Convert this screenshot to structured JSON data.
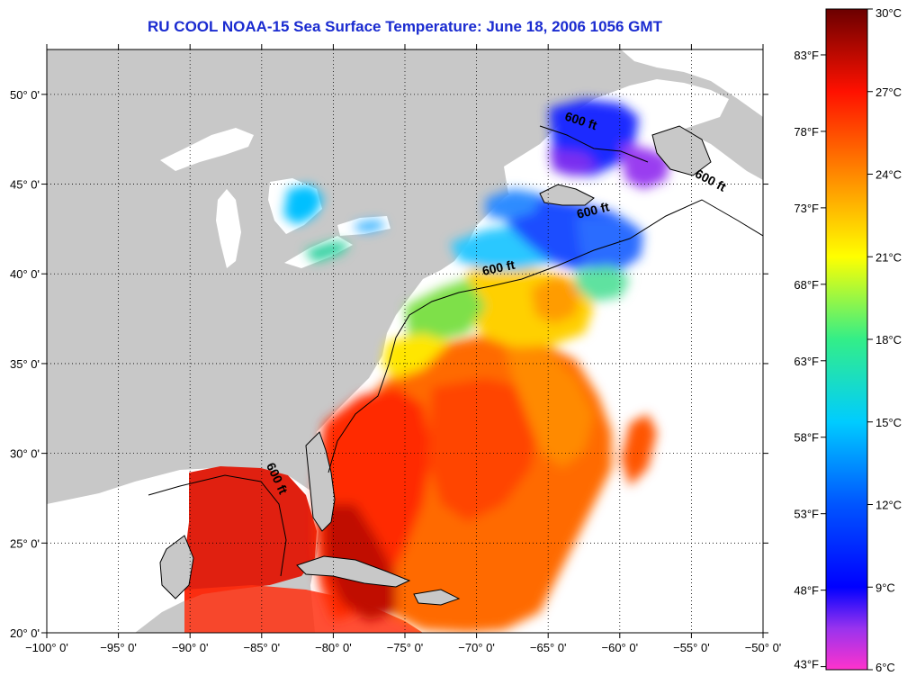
{
  "title": "RU COOL  NOAA-15  Sea Surface Temperature:  June 18, 2006 1056 GMT",
  "map": {
    "lon_range": [
      -100,
      -50
    ],
    "lat_range": [
      20,
      52.5
    ],
    "lon_ticks": [
      {
        "value": -100,
        "label": "−100° 0'"
      },
      {
        "value": -95,
        "label": "−95° 0'"
      },
      {
        "value": -90,
        "label": "−90° 0'"
      },
      {
        "value": -85,
        "label": "−85° 0'"
      },
      {
        "value": -80,
        "label": "−80° 0'"
      },
      {
        "value": -75,
        "label": "−75° 0'"
      },
      {
        "value": -70,
        "label": "−70° 0'"
      },
      {
        "value": -65,
        "label": "−65° 0'"
      },
      {
        "value": -60,
        "label": "−60° 0'"
      },
      {
        "value": -55,
        "label": "−55° 0'"
      },
      {
        "value": -50,
        "label": "−50° 0'"
      }
    ],
    "lat_ticks": [
      {
        "value": 20,
        "label": "20° 0'"
      },
      {
        "value": 25,
        "label": "25° 0'"
      },
      {
        "value": 30,
        "label": "30° 0'"
      },
      {
        "value": 35,
        "label": "35° 0'"
      },
      {
        "value": 40,
        "label": "40° 0'"
      },
      {
        "value": 45,
        "label": "45° 0'"
      },
      {
        "value": 50,
        "label": "50° 0'"
      }
    ],
    "grid": "dotted",
    "land_color": "#c8c8c8",
    "contour_label": "600 ft",
    "contour_labels": [
      {
        "lon": -84.2,
        "lat": 28.5,
        "angle": 65
      },
      {
        "lon": -68.4,
        "lat": 40.1,
        "angle": -12
      },
      {
        "lon": -61.8,
        "lat": 43.3,
        "angle": -14
      },
      {
        "lon": -62.8,
        "lat": 48.3,
        "angle": 18
      },
      {
        "lon": -53.8,
        "lat": 45.0,
        "angle": 28
      }
    ]
  },
  "colorbar": {
    "celsius": [
      {
        "value": 30,
        "label": "30°C"
      },
      {
        "value": 27,
        "label": "27°C"
      },
      {
        "value": 24,
        "label": "24°C"
      },
      {
        "value": 21,
        "label": "21°C"
      },
      {
        "value": 18,
        "label": "18°C"
      },
      {
        "value": 15,
        "label": "15°C"
      },
      {
        "value": 12,
        "label": "12°C"
      },
      {
        "value": 9,
        "label": "9°C"
      },
      {
        "value": 6,
        "label": "6°C"
      }
    ],
    "fahrenheit": [
      {
        "value": 83,
        "label": "83°F"
      },
      {
        "value": 78,
        "label": "78°F"
      },
      {
        "value": 73,
        "label": "73°F"
      },
      {
        "value": 68,
        "label": "68°F"
      },
      {
        "value": 63,
        "label": "63°F"
      },
      {
        "value": 58,
        "label": "58°F"
      },
      {
        "value": 53,
        "label": "53°F"
      },
      {
        "value": 48,
        "label": "48°F"
      },
      {
        "value": 43,
        "label": "43°F"
      }
    ],
    "stops": [
      {
        "t": 6,
        "color": "#ff33cc"
      },
      {
        "t": 7.5,
        "color": "#9933ee"
      },
      {
        "t": 9,
        "color": "#0000ff"
      },
      {
        "t": 12,
        "color": "#0055ff"
      },
      {
        "t": 15,
        "color": "#00ccff"
      },
      {
        "t": 18,
        "color": "#33ee88"
      },
      {
        "t": 21,
        "color": "#ffff00"
      },
      {
        "t": 24,
        "color": "#ff8800"
      },
      {
        "t": 27,
        "color": "#ff1100"
      },
      {
        "t": 30,
        "color": "#6b0000"
      }
    ]
  }
}
